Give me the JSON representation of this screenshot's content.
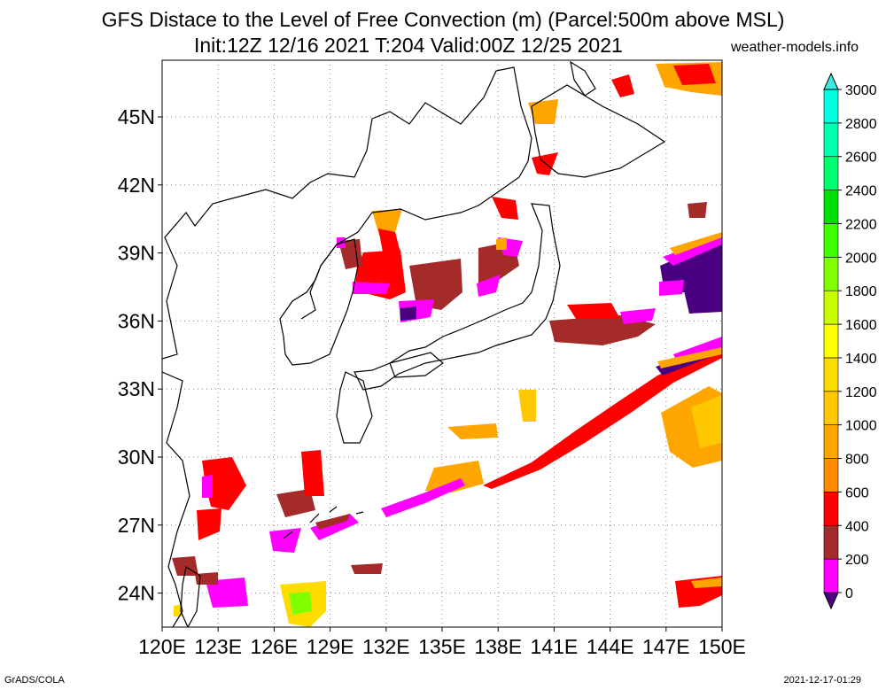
{
  "title_line1": "GFS Distace to the Level of Free Convection (m) (Parcel:500m above MSL)",
  "title_line2": "Init:12Z 12/16 2021 T:204 Valid:00Z 12/25 2021",
  "watermark": "weather-models.info",
  "footer_left": "GrADS/COLA",
  "footer_right": "2021-12-17-01:29",
  "map": {
    "lon_range": [
      120,
      150
    ],
    "lat_range": [
      22.5,
      47.5
    ],
    "lon_ticks": [
      "120E",
      "123E",
      "126E",
      "129E",
      "132E",
      "135E",
      "138E",
      "141E",
      "144E",
      "147E",
      "150E"
    ],
    "lat_ticks": [
      "24N",
      "27N",
      "30N",
      "33N",
      "36N",
      "39N",
      "42N",
      "45N"
    ]
  },
  "colorbar": {
    "labels": [
      "0",
      "200",
      "400",
      "600",
      "800",
      "1000",
      "1200",
      "1400",
      "1600",
      "1800",
      "2000",
      "2200",
      "2400",
      "2600",
      "2800",
      "3000"
    ],
    "colors": [
      "#4b0082",
      "#ff00ff",
      "#a52a2a",
      "#ff0000",
      "#ff8c00",
      "#ffa500",
      "#ffc800",
      "#ffdc00",
      "#ffff00",
      "#c8ff00",
      "#80ff00",
      "#40ff00",
      "#00e000",
      "#00ff70",
      "#00ffb0",
      "#00ffe0",
      "#40e8e0"
    ]
  }
}
